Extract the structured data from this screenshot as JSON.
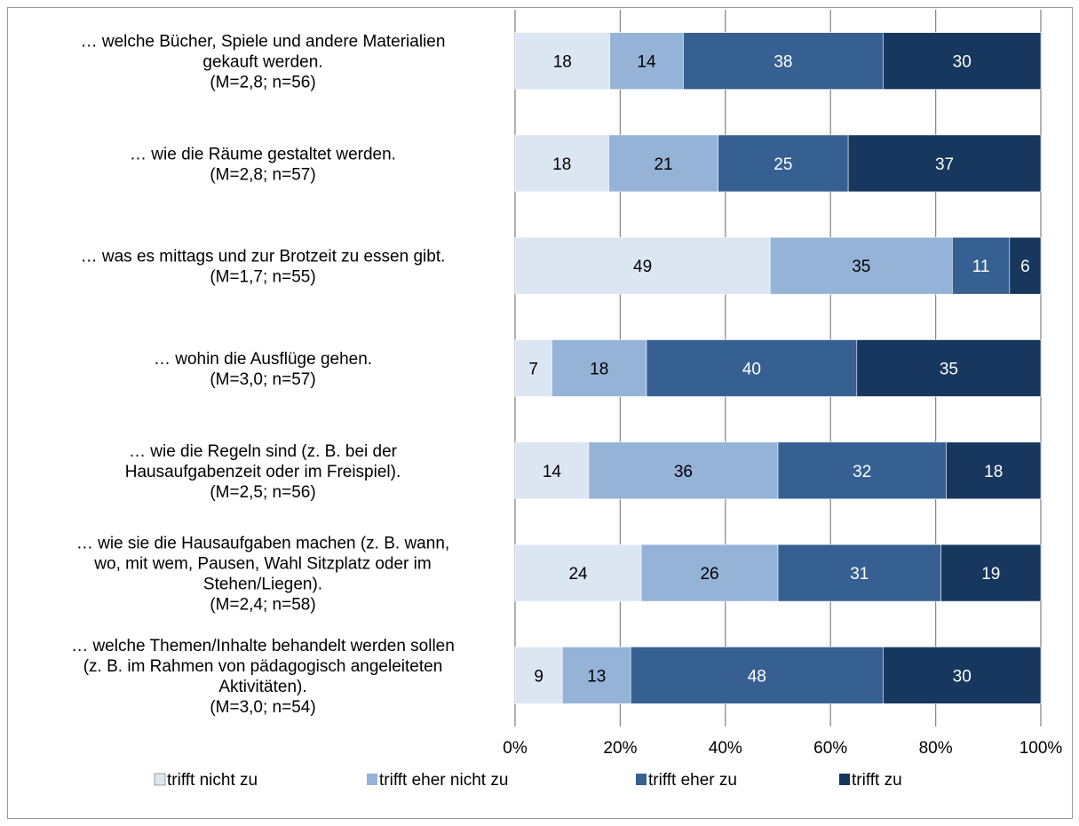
{
  "chart_data": {
    "type": "bar",
    "orientation": "horizontal",
    "stacked": "percent",
    "categories": [
      [
        "… welche Bücher, Spiele und andere Materialien",
        "gekauft werden.",
        "(M=2,8; n=56)"
      ],
      [
        "… wie die Räume gestaltet werden.",
        "(M=2,8; n=57)"
      ],
      [
        "… was es mittags und zur Brotzeit zu essen gibt.",
        "(M=1,7; n=55)"
      ],
      [
        "… wohin die Ausflüge gehen.",
        "(M=3,0; n=57)"
      ],
      [
        "… wie die Regeln sind (z. B. bei der",
        "Hausaufgabenzeit oder im Freispiel).",
        "(M=2,5; n=56)"
      ],
      [
        "… wie sie die Hausaufgaben machen (z. B. wann,",
        "wo, mit wem, Pausen, Wahl Sitzplatz oder im",
        "Stehen/Liegen).",
        "(M=2,4; n=58)"
      ],
      [
        "… welche Themen/Inhalte behandelt werden sollen",
        "(z. B. im Rahmen von pädagogisch angeleiteten",
        "Aktivitäten).",
        "(M=3,0; n=54)"
      ]
    ],
    "series": [
      {
        "name": "trifft nicht zu",
        "color": "#dce6f2",
        "label_color": "#000000",
        "values": [
          18,
          18,
          49,
          7,
          14,
          24,
          9
        ]
      },
      {
        "name": "trifft eher nicht zu",
        "color": "#95b3d7",
        "label_color": "#000000",
        "values": [
          14,
          21,
          35,
          18,
          36,
          26,
          13
        ]
      },
      {
        "name": "trifft eher zu",
        "color": "#376092",
        "label_color": "#ffffff",
        "values": [
          38,
          25,
          11,
          40,
          32,
          31,
          48
        ]
      },
      {
        "name": "trifft zu",
        "color": "#17375e",
        "label_color": "#ffffff",
        "values": [
          30,
          37,
          6,
          35,
          18,
          19,
          30
        ]
      }
    ],
    "xticks": [
      "0%",
      "20%",
      "40%",
      "60%",
      "80%",
      "100%"
    ],
    "xlim": [
      0,
      100
    ],
    "grid": true,
    "legend_position": "bottom"
  }
}
